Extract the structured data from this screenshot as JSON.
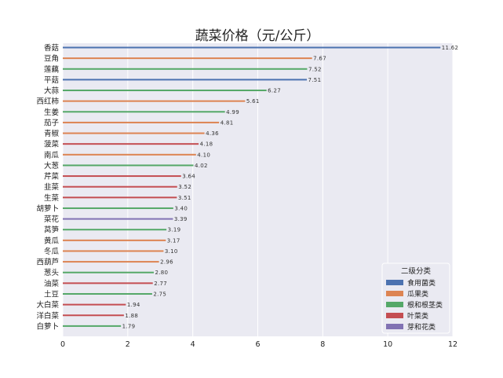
{
  "chart_data": {
    "type": "bar",
    "orientation": "horizontal",
    "title": "蔬菜价格（元/公斤）",
    "xlabel": "",
    "ylabel": "",
    "xlim": [
      0,
      12
    ],
    "xticks": [
      0,
      2,
      4,
      6,
      8,
      10,
      12
    ],
    "grid": true,
    "legend_position": "lower-right",
    "legend_title": "二级分类",
    "legend": [
      {
        "name": "食用菌类",
        "color": "#4c72b0"
      },
      {
        "name": "瓜果类",
        "color": "#dd8452"
      },
      {
        "name": "根和根茎类",
        "color": "#55a868"
      },
      {
        "name": "叶菜类",
        "color": "#c44e52"
      },
      {
        "name": "芽和花类",
        "color": "#8172b3"
      }
    ],
    "bars": [
      {
        "label": "香菇",
        "value": 11.62,
        "value_text": "11.62",
        "group": "食用菌类"
      },
      {
        "label": "豆角",
        "value": 7.67,
        "value_text": "7.67",
        "group": "瓜果类"
      },
      {
        "label": "莲藕",
        "value": 7.52,
        "value_text": "7.52",
        "group": "根和根茎类"
      },
      {
        "label": "平菇",
        "value": 7.51,
        "value_text": "7.51",
        "group": "食用菌类"
      },
      {
        "label": "大蒜",
        "value": 6.27,
        "value_text": "6.27",
        "group": "根和根茎类"
      },
      {
        "label": "西红柿",
        "value": 5.61,
        "value_text": "5.61",
        "group": "瓜果类"
      },
      {
        "label": "生姜",
        "value": 4.99,
        "value_text": "4.99",
        "group": "根和根茎类"
      },
      {
        "label": "茄子",
        "value": 4.81,
        "value_text": "4.81",
        "group": "瓜果类"
      },
      {
        "label": "青椒",
        "value": 4.36,
        "value_text": "4.36",
        "group": "瓜果类"
      },
      {
        "label": "菠菜",
        "value": 4.18,
        "value_text": "4.18",
        "group": "叶菜类"
      },
      {
        "label": "南瓜",
        "value": 4.1,
        "value_text": "4.10",
        "group": "瓜果类"
      },
      {
        "label": "大葱",
        "value": 4.02,
        "value_text": "4.02",
        "group": "根和根茎类"
      },
      {
        "label": "芹菜",
        "value": 3.64,
        "value_text": "3.64",
        "group": "叶菜类"
      },
      {
        "label": "韭菜",
        "value": 3.52,
        "value_text": "3.52",
        "group": "叶菜类"
      },
      {
        "label": "生菜",
        "value": 3.51,
        "value_text": "3.51",
        "group": "叶菜类"
      },
      {
        "label": "胡萝卜",
        "value": 3.4,
        "value_text": "3.40",
        "group": "根和根茎类"
      },
      {
        "label": "菜花",
        "value": 3.39,
        "value_text": "3.39",
        "group": "芽和花类"
      },
      {
        "label": "莴笋",
        "value": 3.19,
        "value_text": "3.19",
        "group": "根和根茎类"
      },
      {
        "label": "黄瓜",
        "value": 3.17,
        "value_text": "3.17",
        "group": "瓜果类"
      },
      {
        "label": "冬瓜",
        "value": 3.1,
        "value_text": "3.10",
        "group": "瓜果类"
      },
      {
        "label": "西葫芦",
        "value": 2.96,
        "value_text": "2.96",
        "group": "瓜果类"
      },
      {
        "label": "葱头",
        "value": 2.8,
        "value_text": "2.80",
        "group": "根和根茎类"
      },
      {
        "label": "油菜",
        "value": 2.77,
        "value_text": "2.77",
        "group": "叶菜类"
      },
      {
        "label": "土豆",
        "value": 2.75,
        "value_text": "2.75",
        "group": "根和根茎类"
      },
      {
        "label": "大白菜",
        "value": 1.94,
        "value_text": "1.94",
        "group": "叶菜类"
      },
      {
        "label": "洋白菜",
        "value": 1.88,
        "value_text": "1.88",
        "group": "叶菜类"
      },
      {
        "label": "白萝卜",
        "value": 1.79,
        "value_text": "1.79",
        "group": "根和根茎类"
      }
    ]
  }
}
